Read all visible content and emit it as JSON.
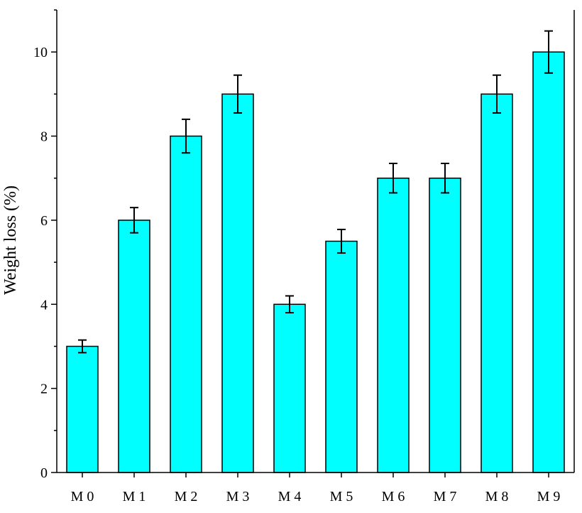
{
  "chart_data": {
    "type": "bar",
    "title": "",
    "xlabel": "",
    "ylabel": "Weight loss (%)",
    "categories": [
      "M 0",
      "M 1",
      "M 2",
      "M 3",
      "M 4",
      "M 5",
      "M 6",
      "M 7",
      "M 8",
      "M 9"
    ],
    "values": [
      3.0,
      6.0,
      8.0,
      9.0,
      4.0,
      5.5,
      7.0,
      7.0,
      9.0,
      10.0
    ],
    "errors": [
      0.15,
      0.3,
      0.4,
      0.45,
      0.2,
      0.28,
      0.35,
      0.35,
      0.45,
      0.5
    ],
    "ylim": [
      0,
      11
    ],
    "yticks": [
      0,
      2,
      4,
      6,
      8,
      10
    ],
    "ytick_labels": [
      "0",
      "2",
      "4",
      "6",
      "8",
      "10"
    ],
    "grid": false,
    "bar_color": "#00ffff",
    "edge_color": "#000000"
  }
}
